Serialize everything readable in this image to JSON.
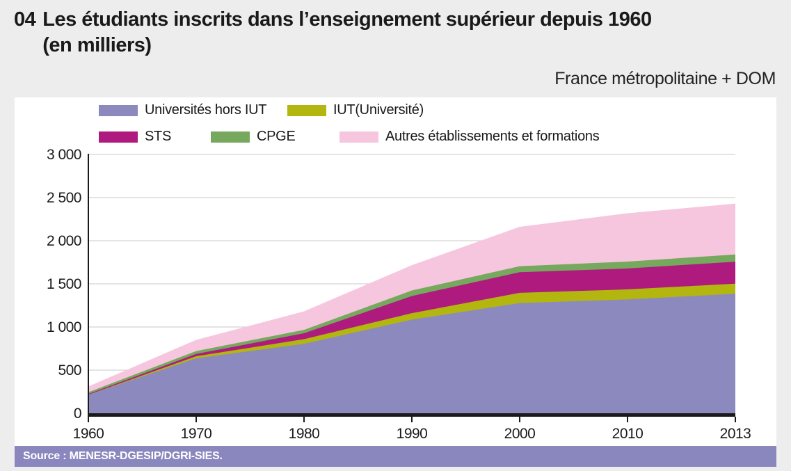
{
  "header": {
    "number": "04",
    "title_line1": "Les étudiants inscrits dans l’enseignement supérieur depuis 1960",
    "title_line2": "(en milliers)",
    "region": "France métropolitaine + DOM"
  },
  "source": {
    "text": "Source : MENESR-DGESIP/DGRI-SIES."
  },
  "colors": {
    "panel_background": "#ffffff",
    "page_background": "#ededed",
    "source_bar": "#8a87be",
    "gridline": "#c9c9c9",
    "axis": "#1a1a1a"
  },
  "chart_data": {
    "type": "area",
    "stacked": true,
    "title": "Les étudiants inscrits dans l’enseignement supérieur depuis 1960 (en milliers)",
    "xlabel": "",
    "ylabel": "",
    "legend_position": "top",
    "grid": "horizontal",
    "categories": [
      "1960",
      "1970",
      "1980",
      "1990",
      "2000",
      "2010",
      "2013"
    ],
    "series": [
      {
        "name": "Universités hors IUT",
        "color": "#8c89bf",
        "values": [
          215,
          637,
          805,
          1086,
          1277,
          1320,
          1385
        ]
      },
      {
        "name": "IUT(Université)",
        "color": "#b2b60f",
        "values": [
          0,
          24,
          54,
          74,
          119,
          116,
          117
        ]
      },
      {
        "name": "STS",
        "color": "#af1a7e",
        "values": [
          8,
          27,
          68,
          199,
          239,
          242,
          255
        ]
      },
      {
        "name": "CPGE",
        "color": "#76a95d",
        "values": [
          21,
          33,
          40,
          64,
          70,
          80,
          84
        ]
      },
      {
        "name": "Autres établissements et formations",
        "color": "#f6c6df",
        "values": [
          66,
          130,
          214,
          294,
          456,
          561,
          589
        ]
      }
    ],
    "totals": [
      310,
      851,
      1181,
      1717,
      2161,
      2319,
      2430
    ],
    "ylim": [
      0,
      3000
    ],
    "yticks": [
      "0",
      "500",
      "1 000",
      "1 500",
      "2 000",
      "2 500",
      "3 000"
    ]
  }
}
